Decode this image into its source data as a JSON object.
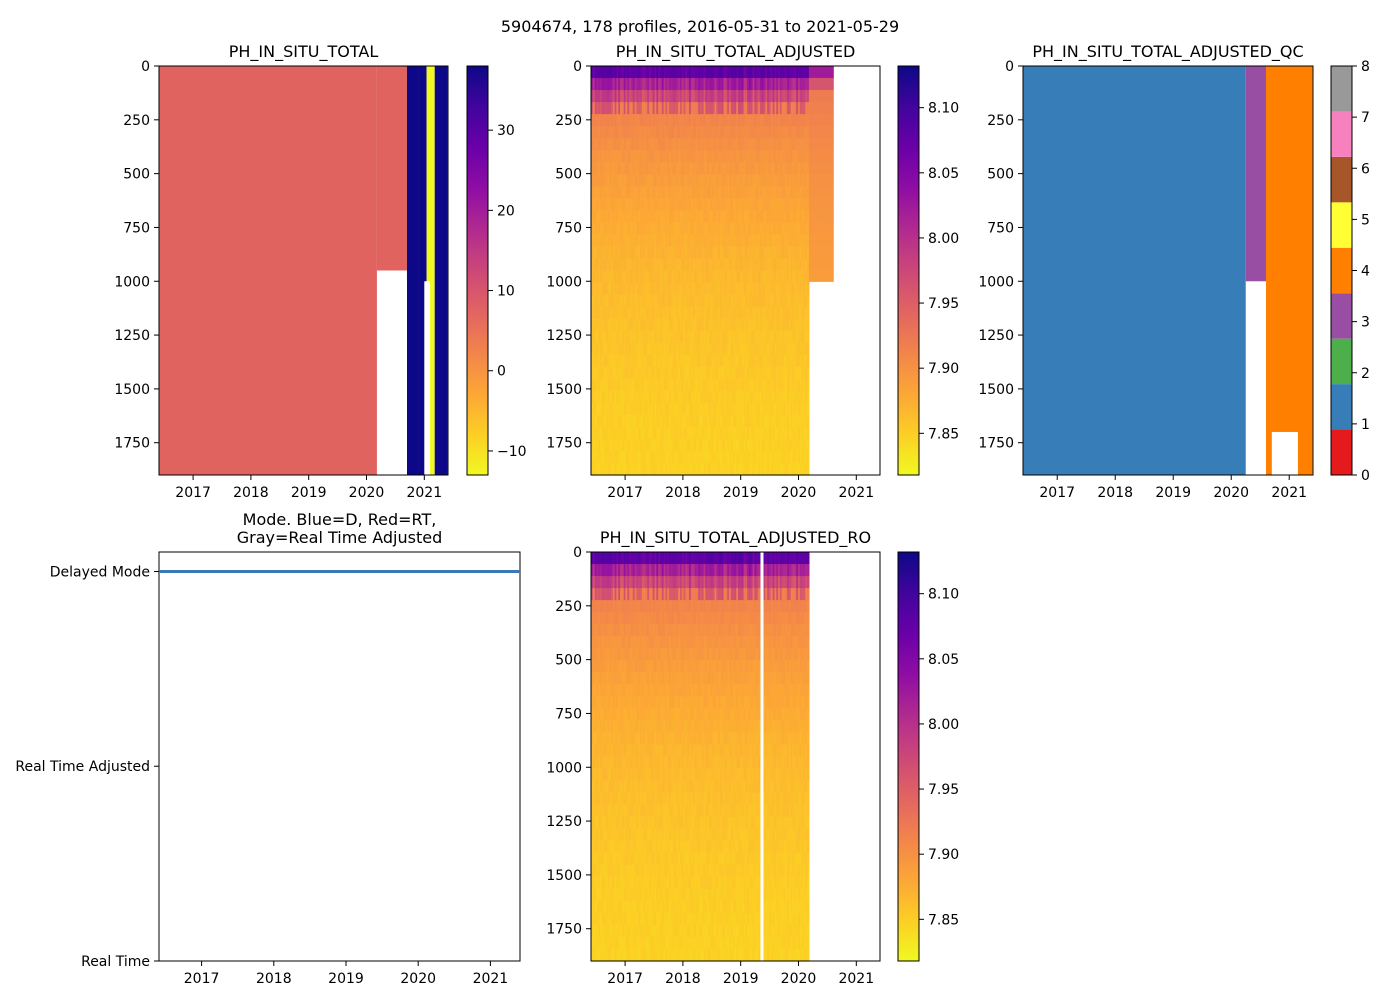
{
  "suptitle": "5904674, 178 profiles, 2016-05-31 to 2021-05-29",
  "colors": {
    "plasma": [
      "#0d0887",
      "#41049d",
      "#6a00a8",
      "#8f0da4",
      "#b12a90",
      "#cc4778",
      "#e16462",
      "#f2844b",
      "#fca636",
      "#fcce25",
      "#f0f921"
    ],
    "qc": [
      "#e41a1c",
      "#377eb8",
      "#4daf4a",
      "#984ea3",
      "#ff7f00",
      "#ffff33",
      "#a65628",
      "#f781bf",
      "#999999"
    ],
    "uniform_red": "#e06360",
    "mode_line": "#3c78b5"
  },
  "chart_data": [
    {
      "id": "raw",
      "type": "heatmap",
      "title": "PH_IN_SITU_TOTAL",
      "x_ticks": [
        "2017",
        "2018",
        "2019",
        "2020",
        "2021"
      ],
      "x_tick_values": [
        2017,
        2018,
        2019,
        2020,
        2021
      ],
      "xlim": [
        2016.41,
        2021.41
      ],
      "y_ticks": [
        "0",
        "250",
        "500",
        "750",
        "1000",
        "1250",
        "1500",
        "1750"
      ],
      "y_tick_values": [
        0,
        250,
        500,
        750,
        1000,
        1250,
        1500,
        1750
      ],
      "ylim": [
        1900,
        0
      ],
      "colorbar": {
        "ticks": [
          "−10",
          "0",
          "10",
          "20",
          "30"
        ],
        "tick_values": [
          -10,
          0,
          10,
          20,
          30
        ],
        "range": [
          -13,
          38
        ],
        "cmap": "plasma_r"
      },
      "data_end": 2020.18,
      "bands": [
        {
          "x0": 2020.7,
          "x1": 2020.9,
          "value": 38
        },
        {
          "x0": 2020.9,
          "x1": 2021.04,
          "value": 38
        },
        {
          "x0": 2021.04,
          "x1": 2021.18,
          "value": -13
        },
        {
          "x0": 2021.18,
          "x1": 2021.4,
          "value": 38
        }
      ]
    },
    {
      "id": "adjusted",
      "type": "heatmap",
      "title": "PH_IN_SITU_TOTAL_ADJUSTED",
      "x_ticks": [
        "2017",
        "2018",
        "2019",
        "2020",
        "2021"
      ],
      "x_tick_values": [
        2017,
        2018,
        2019,
        2020,
        2021
      ],
      "xlim": [
        2016.41,
        2021.41
      ],
      "y_ticks": [
        "0",
        "250",
        "500",
        "750",
        "1000",
        "1250",
        "1500",
        "1750"
      ],
      "y_tick_values": [
        0,
        250,
        500,
        750,
        1000,
        1250,
        1500,
        1750
      ],
      "ylim": [
        1900,
        0
      ],
      "colorbar": {
        "ticks": [
          "7.85",
          "7.90",
          "7.95",
          "8.00",
          "8.05",
          "8.10"
        ],
        "tick_values": [
          7.85,
          7.9,
          7.95,
          8.0,
          8.05,
          8.1
        ],
        "range": [
          7.818,
          8.132
        ],
        "cmap": "plasma_r"
      },
      "data_end": 2020.18,
      "extended_end": 2020.6,
      "extended_depth": 1000
    },
    {
      "id": "qc",
      "type": "heatmap",
      "title": "PH_IN_SITU_TOTAL_ADJUSTED_QC",
      "x_ticks": [
        "2017",
        "2018",
        "2019",
        "2020",
        "2021"
      ],
      "x_tick_values": [
        2017,
        2018,
        2019,
        2020,
        2021
      ],
      "xlim": [
        2016.41,
        2021.41
      ],
      "y_ticks": [
        "0",
        "250",
        "500",
        "750",
        "1000",
        "1250",
        "1500",
        "1750"
      ],
      "y_tick_values": [
        0,
        250,
        500,
        750,
        1000,
        1250,
        1500,
        1750
      ],
      "ylim": [
        1900,
        0
      ],
      "colorbar": {
        "ticks": [
          "0",
          "1",
          "2",
          "3",
          "4",
          "5",
          "6",
          "7",
          "8"
        ],
        "tick_values": [
          0,
          1,
          2,
          3,
          4,
          5,
          6,
          7,
          8
        ],
        "range": [
          0,
          8
        ],
        "cmap": "qc"
      },
      "segments": [
        {
          "x0": 2016.41,
          "x1": 2020.25,
          "qc": 1,
          "depth": 1900
        },
        {
          "x0": 2020.25,
          "x1": 2020.6,
          "qc": 3,
          "depth": 1000
        },
        {
          "x0": 2020.6,
          "x1": 2021.4,
          "qc": 4,
          "depth": 1900
        }
      ]
    },
    {
      "id": "mode",
      "type": "line",
      "title": "Mode. Blue=D, Red=RT,",
      "title2": "Gray=Real Time Adjusted",
      "x_ticks": [
        "2017",
        "2018",
        "2019",
        "2020",
        "2021"
      ],
      "x_tick_values": [
        2017,
        2018,
        2019,
        2020,
        2021
      ],
      "xlim": [
        2016.41,
        2021.41
      ],
      "y_ticks": [
        "Delayed Mode",
        "Real Time Adjusted",
        "Real Time"
      ],
      "y_tick_values": [
        2,
        1,
        0
      ],
      "ylim": [
        0,
        2.1
      ],
      "series": [
        {
          "name": "D",
          "x": [
            2016.41,
            2021.41
          ],
          "y": [
            2,
            2
          ]
        }
      ]
    },
    {
      "id": "ro",
      "type": "heatmap",
      "title": "PH_IN_SITU_TOTAL_ADJUSTED_RO",
      "x_ticks": [
        "2017",
        "2018",
        "2019",
        "2020",
        "2021"
      ],
      "x_tick_values": [
        2017,
        2018,
        2019,
        2020,
        2021
      ],
      "xlim": [
        2016.41,
        2021.41
      ],
      "y_ticks": [
        "0",
        "250",
        "500",
        "750",
        "1000",
        "1250",
        "1500",
        "1750"
      ],
      "y_tick_values": [
        0,
        250,
        500,
        750,
        1000,
        1250,
        1500,
        1750
      ],
      "ylim": [
        1900,
        0
      ],
      "colorbar": {
        "ticks": [
          "7.85",
          "7.90",
          "7.95",
          "8.00",
          "8.05",
          "8.10"
        ],
        "tick_values": [
          7.85,
          7.9,
          7.95,
          8.0,
          8.05,
          8.1
        ],
        "range": [
          7.818,
          8.132
        ],
        "cmap": "plasma_r"
      },
      "data_end": 2020.18,
      "gap_at": 2019.35
    }
  ]
}
